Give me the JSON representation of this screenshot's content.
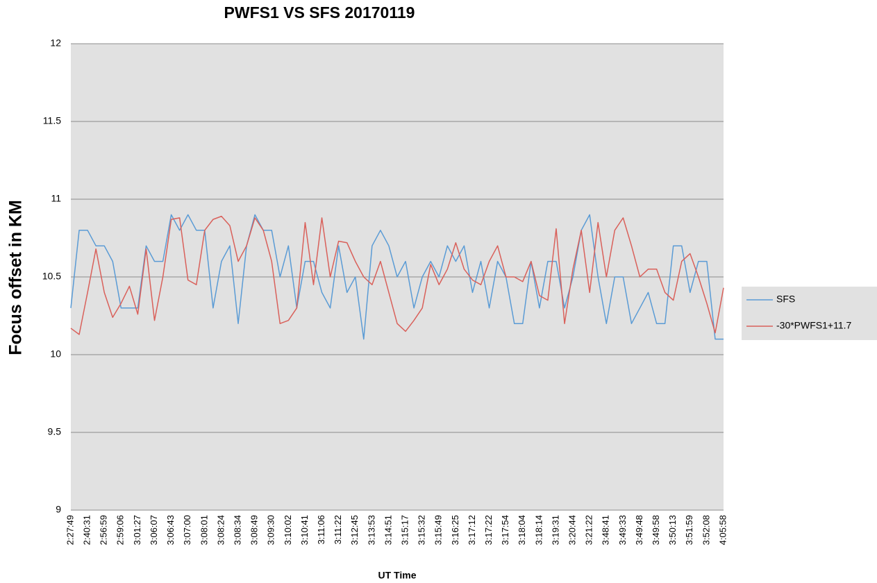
{
  "chart_data": {
    "type": "line",
    "title": "PWFS1 VS SFS 20170119",
    "x_label": "UT Time",
    "y_label": "Focus offset in KM",
    "categories": [
      "2:27:49",
      null,
      "2:40:31",
      null,
      "2:56:59",
      null,
      "2:59:06",
      null,
      "3:01:27",
      null,
      "3:06:07",
      null,
      "3:06:43",
      null,
      "3:07:00",
      null,
      "3:08:01",
      null,
      "3:08:24",
      null,
      "3:08:34",
      null,
      "3:08:49",
      null,
      "3:09:30",
      null,
      "3:10:02",
      null,
      "3:10:41",
      null,
      "3:11:06",
      null,
      "3:11:22",
      null,
      "3:12:45",
      null,
      "3:13:53",
      null,
      "3:14:51",
      null,
      "3:15:17",
      null,
      "3:15:32",
      null,
      "3:15:49",
      null,
      "3:16:25",
      null,
      "3:17:12",
      null,
      "3:17:22",
      null,
      "3:17:54",
      null,
      "3:18:04",
      null,
      "3:18:14",
      null,
      "3:19:31",
      null,
      "3:20:44",
      null,
      "3:21:22",
      null,
      "3:48:41",
      null,
      "3:49:33",
      null,
      "3:49:48",
      null,
      "3:49:58",
      null,
      "3:50:13",
      null,
      "3:51:59",
      null,
      "3:52:08",
      null,
      "4:05:58"
    ],
    "series": [
      {
        "name": "SFS",
        "color": "#5a9bd5",
        "values": [
          10.3,
          10.8,
          10.8,
          10.7,
          10.7,
          10.6,
          10.3,
          10.3,
          10.3,
          10.7,
          10.6,
          10.6,
          10.9,
          10.8,
          10.9,
          10.8,
          10.8,
          10.3,
          10.6,
          10.7,
          10.2,
          10.7,
          10.9,
          10.8,
          10.8,
          10.5,
          10.7,
          10.3,
          10.6,
          10.6,
          10.4,
          10.3,
          10.7,
          10.4,
          10.5,
          10.1,
          10.7,
          10.8,
          10.7,
          10.5,
          10.6,
          10.3,
          10.5,
          10.6,
          10.5,
          10.7,
          10.6,
          10.7,
          10.4,
          10.6,
          10.3,
          10.6,
          10.5,
          10.2,
          10.2,
          10.6,
          10.3,
          10.6,
          10.6,
          10.3,
          10.5,
          10.8,
          10.9,
          10.5,
          10.2,
          10.5,
          10.5,
          10.2,
          10.3,
          10.4,
          10.2,
          10.2,
          10.7,
          10.7,
          10.4,
          10.6,
          10.6,
          10.1,
          10.1
        ]
      },
      {
        "name": "-30*PWFS1+11.7",
        "color": "#d9605a",
        "values": [
          10.17,
          10.13,
          10.4,
          10.68,
          10.4,
          10.24,
          10.33,
          10.44,
          10.26,
          10.68,
          10.22,
          10.5,
          10.87,
          10.88,
          10.48,
          10.45,
          10.8,
          10.87,
          10.89,
          10.83,
          10.6,
          10.7,
          10.88,
          10.8,
          10.6,
          10.2,
          10.22,
          10.3,
          10.85,
          10.45,
          10.88,
          10.5,
          10.73,
          10.72,
          10.6,
          10.5,
          10.45,
          10.6,
          10.4,
          10.2,
          10.15,
          10.22,
          10.3,
          10.58,
          10.45,
          10.55,
          10.72,
          10.55,
          10.48,
          10.45,
          10.6,
          10.7,
          10.5,
          10.5,
          10.47,
          10.6,
          10.38,
          10.35,
          10.81,
          10.2,
          10.55,
          10.8,
          10.4,
          10.85,
          10.5,
          10.8,
          10.88,
          10.7,
          10.5,
          10.55,
          10.55,
          10.4,
          10.35,
          10.6,
          10.65,
          10.5,
          10.33,
          10.14,
          10.43
        ]
      }
    ],
    "ylim": [
      9,
      12
    ],
    "yticks": [
      9,
      9.5,
      10,
      10.5,
      11,
      11.5,
      12
    ],
    "grid": true,
    "legend": "right"
  }
}
